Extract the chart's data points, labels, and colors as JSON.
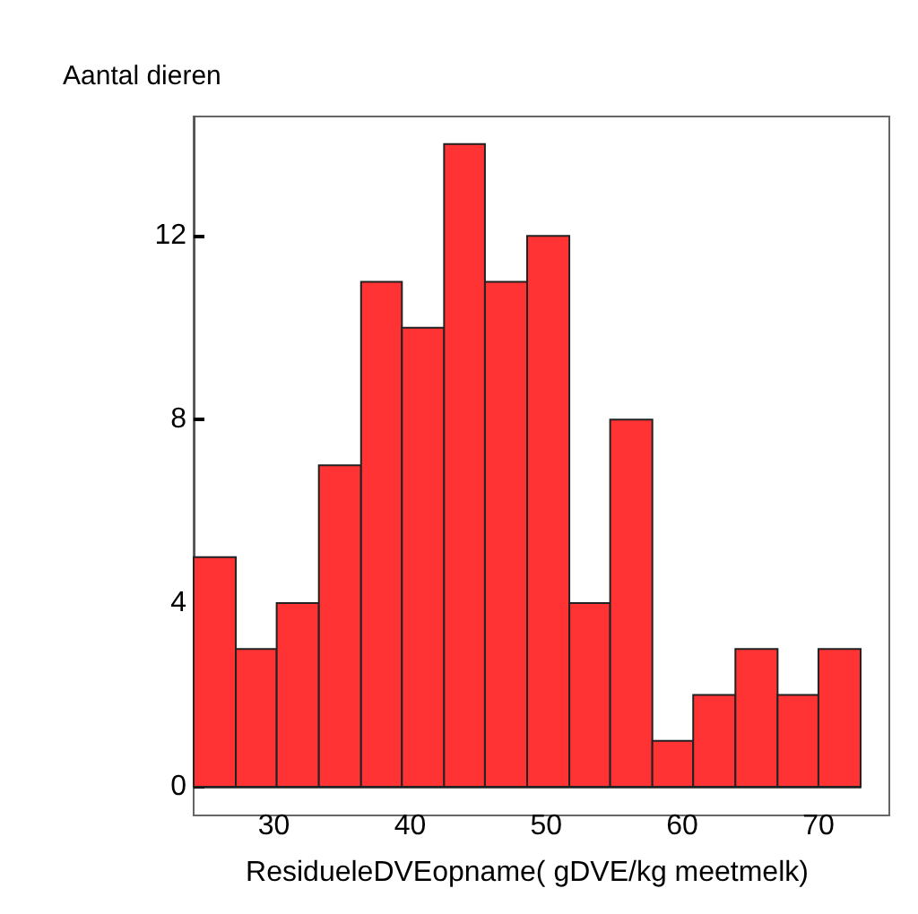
{
  "chart_data": {
    "type": "histogram",
    "ylabel": "Aantal dieren",
    "xlabel": "ResidueleDVEopname( gDVE/kg meetmelk)",
    "bins": [
      24.1,
      27.2,
      30.2,
      33.3,
      36.4,
      39.4,
      42.5,
      45.5,
      48.6,
      51.7,
      54.7,
      57.8,
      60.8,
      63.9,
      67.0,
      70.0,
      73.1
    ],
    "values": [
      5,
      3,
      4,
      7,
      11,
      10,
      14,
      11,
      12,
      4,
      8,
      1,
      2,
      3,
      2,
      3
    ],
    "color": "#ff3333",
    "xlim": [
      24.1,
      73.1
    ],
    "xticks": [
      30,
      40,
      50,
      60,
      70
    ],
    "ylim": [
      0,
      14.6
    ],
    "yticks": [
      0,
      4,
      8,
      12
    ],
    "grid": false
  }
}
